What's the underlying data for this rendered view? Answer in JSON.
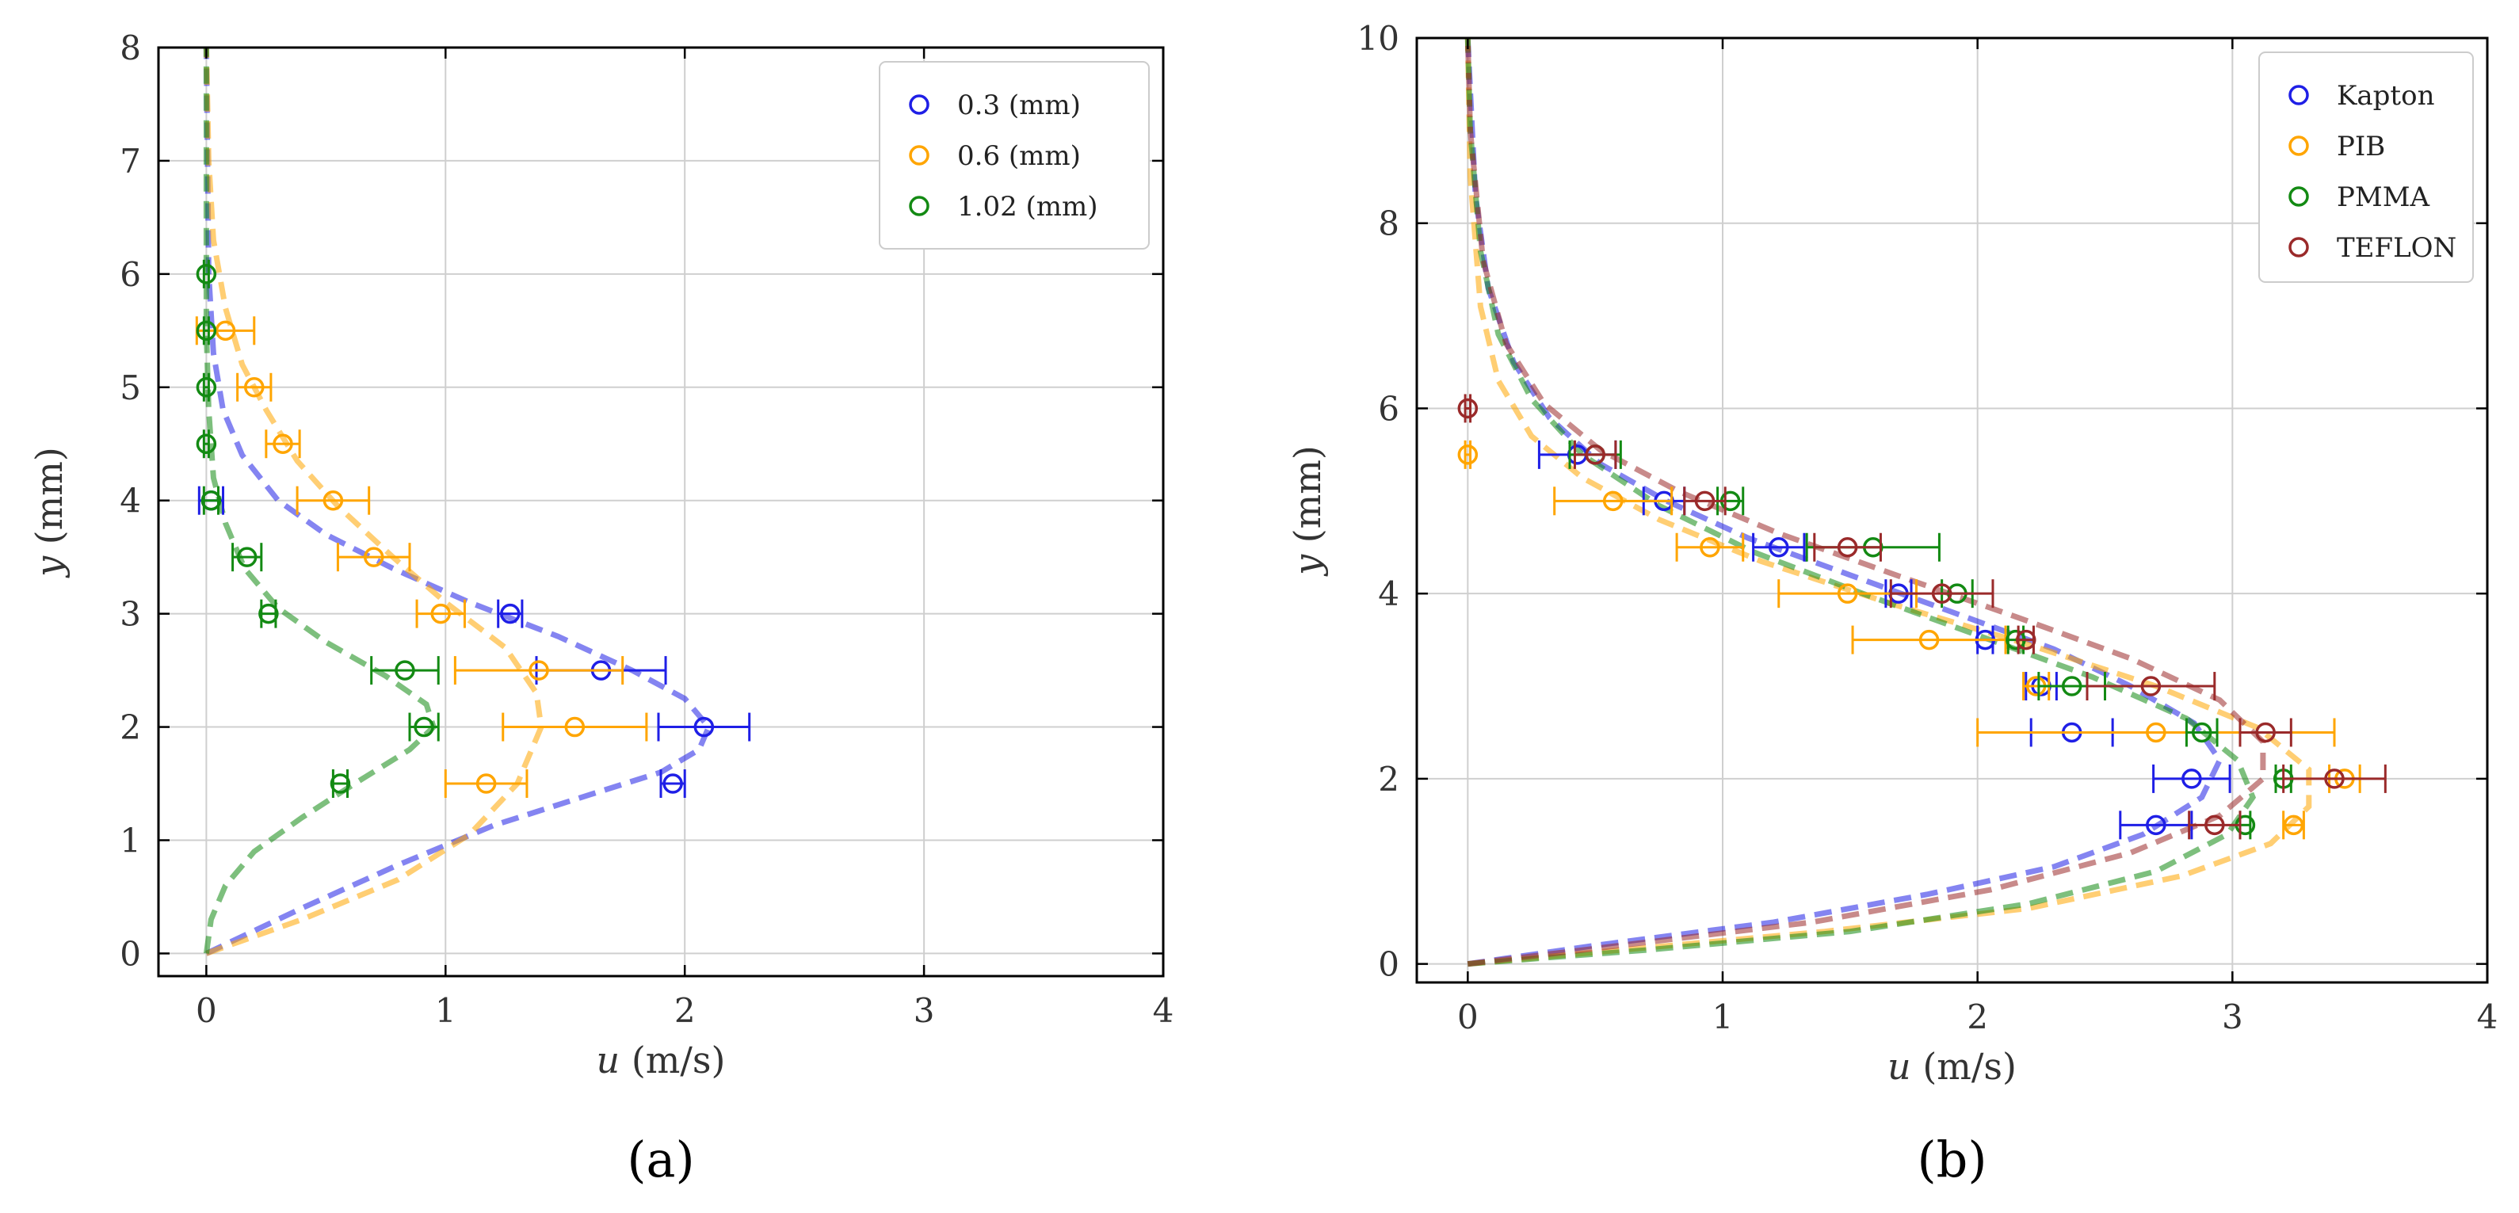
{
  "colors": {
    "blue": "#1f1fe6",
    "orange": "#ffa500",
    "green": "#138a13",
    "darkred": "#9a2a2a"
  },
  "chart_data": [
    {
      "type": "scatter",
      "panel_label": "(a)",
      "xlabel": "u (m/s)",
      "xlabel_var": "u",
      "xlabel_unit": "(m/s)",
      "ylabel": "y (mm)",
      "ylabel_var": "y",
      "ylabel_unit": "(mm)",
      "xlim": [
        -0.2,
        4
      ],
      "ylim": [
        -0.2,
        8
      ],
      "xticks": [
        0,
        1,
        2,
        3,
        4
      ],
      "yticks": [
        0,
        1,
        2,
        3,
        4,
        5,
        6,
        7,
        8
      ],
      "grid": true,
      "legend_position": "top-right",
      "series": [
        {
          "name": "0.3 (mm)",
          "color_key": "blue",
          "points": [
            {
              "x": 0.02,
              "y": 4.0,
              "err": 0.05
            },
            {
              "x": 1.27,
              "y": 3.0,
              "err": 0.05
            },
            {
              "x": 1.65,
              "y": 2.5,
              "err": 0.27
            },
            {
              "x": 2.08,
              "y": 2.0,
              "err": 0.19
            },
            {
              "x": 1.95,
              "y": 1.5,
              "err": 0.05
            }
          ],
          "fit": [
            [
              0,
              0
            ],
            [
              0.4,
              0.4
            ],
            [
              0.8,
              0.78
            ],
            [
              1.2,
              1.13
            ],
            [
              1.6,
              1.4
            ],
            [
              1.9,
              1.6
            ],
            [
              2.06,
              1.8
            ],
            [
              2.1,
              2.0
            ],
            [
              2.0,
              2.25
            ],
            [
              1.78,
              2.5
            ],
            [
              1.47,
              2.8
            ],
            [
              1.1,
              3.1
            ],
            [
              0.78,
              3.4
            ],
            [
              0.5,
              3.7
            ],
            [
              0.3,
              4.0
            ],
            [
              0.15,
              4.4
            ],
            [
              0.07,
              4.8
            ],
            [
              0.03,
              5.3
            ],
            [
              0.01,
              6.0
            ],
            [
              0.005,
              7.0
            ],
            [
              0,
              8
            ]
          ]
        },
        {
          "name": "0.6 (mm)",
          "color_key": "orange",
          "points": [
            {
              "x": 0.08,
              "y": 5.5,
              "err": 0.12
            },
            {
              "x": 0.2,
              "y": 5.0,
              "err": 0.07
            },
            {
              "x": 0.32,
              "y": 4.5,
              "err": 0.07
            },
            {
              "x": 0.53,
              "y": 4.0,
              "err": 0.15
            },
            {
              "x": 0.7,
              "y": 3.5,
              "err": 0.15
            },
            {
              "x": 0.98,
              "y": 3.0,
              "err": 0.1
            },
            {
              "x": 1.39,
              "y": 2.5,
              "err": 0.35
            },
            {
              "x": 1.54,
              "y": 2.0,
              "err": 0.3
            },
            {
              "x": 1.17,
              "y": 1.5,
              "err": 0.17
            }
          ],
          "fit": [
            [
              0,
              0
            ],
            [
              0.4,
              0.3
            ],
            [
              0.8,
              0.65
            ],
            [
              1.1,
              1.05
            ],
            [
              1.3,
              1.5
            ],
            [
              1.4,
              2.0
            ],
            [
              1.38,
              2.3
            ],
            [
              1.25,
              2.7
            ],
            [
              1.0,
              3.1
            ],
            [
              0.78,
              3.5
            ],
            [
              0.55,
              3.95
            ],
            [
              0.38,
              4.35
            ],
            [
              0.25,
              4.8
            ],
            [
              0.15,
              5.2
            ],
            [
              0.08,
              5.7
            ],
            [
              0.03,
              6.3
            ],
            [
              0.01,
              7.0
            ],
            [
              0,
              8
            ]
          ]
        },
        {
          "name": "1.02 (mm)",
          "color_key": "green",
          "points": [
            {
              "x": 0.0,
              "y": 6.0,
              "err": 0.01
            },
            {
              "x": 0.0,
              "y": 5.5,
              "err": 0.01
            },
            {
              "x": 0.0,
              "y": 5.0,
              "err": 0.01
            },
            {
              "x": 0.0,
              "y": 4.5,
              "err": 0.01
            },
            {
              "x": 0.02,
              "y": 4.0,
              "err": 0.03
            },
            {
              "x": 0.17,
              "y": 3.5,
              "err": 0.06
            },
            {
              "x": 0.26,
              "y": 3.0,
              "err": 0.03
            },
            {
              "x": 0.83,
              "y": 2.5,
              "err": 0.14
            },
            {
              "x": 0.91,
              "y": 2.0,
              "err": 0.06
            },
            {
              "x": 0.56,
              "y": 1.5,
              "err": 0.03
            }
          ],
          "fit": [
            [
              0,
              0
            ],
            [
              0.02,
              0.3
            ],
            [
              0.08,
              0.6
            ],
            [
              0.2,
              0.9
            ],
            [
              0.4,
              1.2
            ],
            [
              0.62,
              1.5
            ],
            [
              0.85,
              1.8
            ],
            [
              0.95,
              2.0
            ],
            [
              0.92,
              2.2
            ],
            [
              0.75,
              2.45
            ],
            [
              0.5,
              2.75
            ],
            [
              0.3,
              3.05
            ],
            [
              0.16,
              3.4
            ],
            [
              0.08,
              3.8
            ],
            [
              0.03,
              4.2
            ],
            [
              0.01,
              4.8
            ],
            [
              0,
              5.5
            ],
            [
              0,
              8
            ]
          ]
        }
      ]
    },
    {
      "type": "scatter",
      "panel_label": "(b)",
      "xlabel": "u (m/s)",
      "xlabel_var": "u",
      "xlabel_unit": "(m/s)",
      "ylabel": "y (mm)",
      "ylabel_var": "y",
      "ylabel_unit": "(mm)",
      "xlim": [
        -0.2,
        4
      ],
      "ylim": [
        -0.2,
        10
      ],
      "xticks": [
        0,
        1,
        2,
        3,
        4
      ],
      "yticks": [
        0,
        2,
        4,
        6,
        8,
        10
      ],
      "grid": true,
      "legend_position": "top-right",
      "series": [
        {
          "name": "Kapton",
          "color_key": "blue",
          "points": [
            {
              "x": 0.43,
              "y": 5.5,
              "err": 0.15
            },
            {
              "x": 0.77,
              "y": 5.0,
              "err": 0.08
            },
            {
              "x": 1.22,
              "y": 4.5,
              "err": 0.1
            },
            {
              "x": 1.69,
              "y": 4.0,
              "err": 0.05
            },
            {
              "x": 2.03,
              "y": 3.5,
              "err": 0.03
            },
            {
              "x": 2.25,
              "y": 3.0,
              "err": 0.06
            },
            {
              "x": 2.37,
              "y": 2.5,
              "err": 0.16
            },
            {
              "x": 2.84,
              "y": 2.0,
              "err": 0.15
            },
            {
              "x": 2.7,
              "y": 1.5,
              "err": 0.14
            }
          ],
          "fit": [
            [
              0,
              0
            ],
            [
              0.5,
              0.2
            ],
            [
              1.2,
              0.45
            ],
            [
              1.8,
              0.75
            ],
            [
              2.3,
              1.05
            ],
            [
              2.65,
              1.4
            ],
            [
              2.88,
              1.8
            ],
            [
              2.95,
              2.2
            ],
            [
              2.85,
              2.6
            ],
            [
              2.6,
              3.0
            ],
            [
              2.3,
              3.4
            ],
            [
              1.9,
              3.8
            ],
            [
              1.5,
              4.2
            ],
            [
              1.1,
              4.6
            ],
            [
              0.78,
              5.0
            ],
            [
              0.52,
              5.4
            ],
            [
              0.32,
              5.9
            ],
            [
              0.18,
              6.5
            ],
            [
              0.08,
              7.3
            ],
            [
              0.03,
              8.3
            ],
            [
              0,
              10
            ]
          ]
        },
        {
          "name": "PIB",
          "color_key": "orange",
          "points": [
            {
              "x": 0.0,
              "y": 5.5,
              "err": 0.01
            },
            {
              "x": 0.57,
              "y": 5.0,
              "err": 0.23
            },
            {
              "x": 0.95,
              "y": 4.5,
              "err": 0.13
            },
            {
              "x": 1.49,
              "y": 4.0,
              "err": 0.27
            },
            {
              "x": 1.81,
              "y": 3.5,
              "err": 0.3
            },
            {
              "x": 2.23,
              "y": 3.0,
              "err": 0.05
            },
            {
              "x": 2.7,
              "y": 2.5,
              "err": 0.7
            },
            {
              "x": 3.44,
              "y": 2.0,
              "err": 0.06
            },
            {
              "x": 3.24,
              "y": 1.5,
              "err": 0.04
            }
          ],
          "fit": [
            [
              0,
              0
            ],
            [
              0.6,
              0.15
            ],
            [
              1.4,
              0.35
            ],
            [
              2.2,
              0.6
            ],
            [
              2.8,
              0.95
            ],
            [
              3.15,
              1.3
            ],
            [
              3.3,
              1.7
            ],
            [
              3.3,
              2.1
            ],
            [
              3.1,
              2.55
            ],
            [
              2.7,
              3.0
            ],
            [
              2.2,
              3.45
            ],
            [
              1.65,
              3.9
            ],
            [
              1.15,
              4.35
            ],
            [
              0.75,
              4.8
            ],
            [
              0.45,
              5.25
            ],
            [
              0.25,
              5.7
            ],
            [
              0.12,
              6.3
            ],
            [
              0.05,
              7.1
            ],
            [
              0.01,
              8.5
            ],
            [
              0,
              10
            ]
          ]
        },
        {
          "name": "PMMA",
          "color_key": "green",
          "points": [
            {
              "x": 0.5,
              "y": 5.5,
              "err": 0.1
            },
            {
              "x": 1.03,
              "y": 5.0,
              "err": 0.05
            },
            {
              "x": 1.59,
              "y": 4.5,
              "err": 0.26
            },
            {
              "x": 1.92,
              "y": 4.0,
              "err": 0.06
            },
            {
              "x": 2.15,
              "y": 3.5,
              "err": 0.03
            },
            {
              "x": 2.37,
              "y": 3.0,
              "err": 0.13
            },
            {
              "x": 2.88,
              "y": 2.5,
              "err": 0.06
            },
            {
              "x": 3.2,
              "y": 2.0,
              "err": 0.03
            },
            {
              "x": 3.05,
              "y": 1.5,
              "err": 0.02
            }
          ],
          "fit": [
            [
              0,
              0
            ],
            [
              0.7,
              0.15
            ],
            [
              1.5,
              0.35
            ],
            [
              2.2,
              0.65
            ],
            [
              2.7,
              1.0
            ],
            [
              2.98,
              1.4
            ],
            [
              3.08,
              1.8
            ],
            [
              3.02,
              2.2
            ],
            [
              2.82,
              2.65
            ],
            [
              2.45,
              3.1
            ],
            [
              2.0,
              3.55
            ],
            [
              1.55,
              4.0
            ],
            [
              1.12,
              4.45
            ],
            [
              0.75,
              4.95
            ],
            [
              0.45,
              5.5
            ],
            [
              0.25,
              6.1
            ],
            [
              0.12,
              6.8
            ],
            [
              0.05,
              7.7
            ],
            [
              0.01,
              9.0
            ],
            [
              0,
              10
            ]
          ]
        },
        {
          "name": "TEFLON",
          "color_key": "darkred",
          "points": [
            {
              "x": 0.0,
              "y": 6.0,
              "err": 0.01
            },
            {
              "x": 0.5,
              "y": 5.5,
              "err": 0.08
            },
            {
              "x": 0.93,
              "y": 5.0,
              "err": 0.08
            },
            {
              "x": 1.49,
              "y": 4.5,
              "err": 0.13
            },
            {
              "x": 1.86,
              "y": 4.0,
              "err": 0.2
            },
            {
              "x": 2.19,
              "y": 3.5,
              "err": 0.03
            },
            {
              "x": 2.68,
              "y": 3.0,
              "err": 0.25
            },
            {
              "x": 3.13,
              "y": 2.5,
              "err": 0.1
            },
            {
              "x": 3.4,
              "y": 2.0,
              "err": 0.2
            },
            {
              "x": 2.93,
              "y": 1.5,
              "err": 0.1
            }
          ],
          "fit": [
            [
              0,
              0
            ],
            [
              0.6,
              0.2
            ],
            [
              1.35,
              0.45
            ],
            [
              2.05,
              0.8
            ],
            [
              2.6,
              1.2
            ],
            [
              2.95,
              1.6
            ],
            [
              3.12,
              2.0
            ],
            [
              3.12,
              2.4
            ],
            [
              2.95,
              2.85
            ],
            [
              2.6,
              3.3
            ],
            [
              2.15,
              3.75
            ],
            [
              1.68,
              4.2
            ],
            [
              1.22,
              4.65
            ],
            [
              0.83,
              5.1
            ],
            [
              0.52,
              5.55
            ],
            [
              0.3,
              6.05
            ],
            [
              0.15,
              6.7
            ],
            [
              0.06,
              7.6
            ],
            [
              0.01,
              9.0
            ],
            [
              0,
              10
            ]
          ]
        }
      ]
    }
  ]
}
